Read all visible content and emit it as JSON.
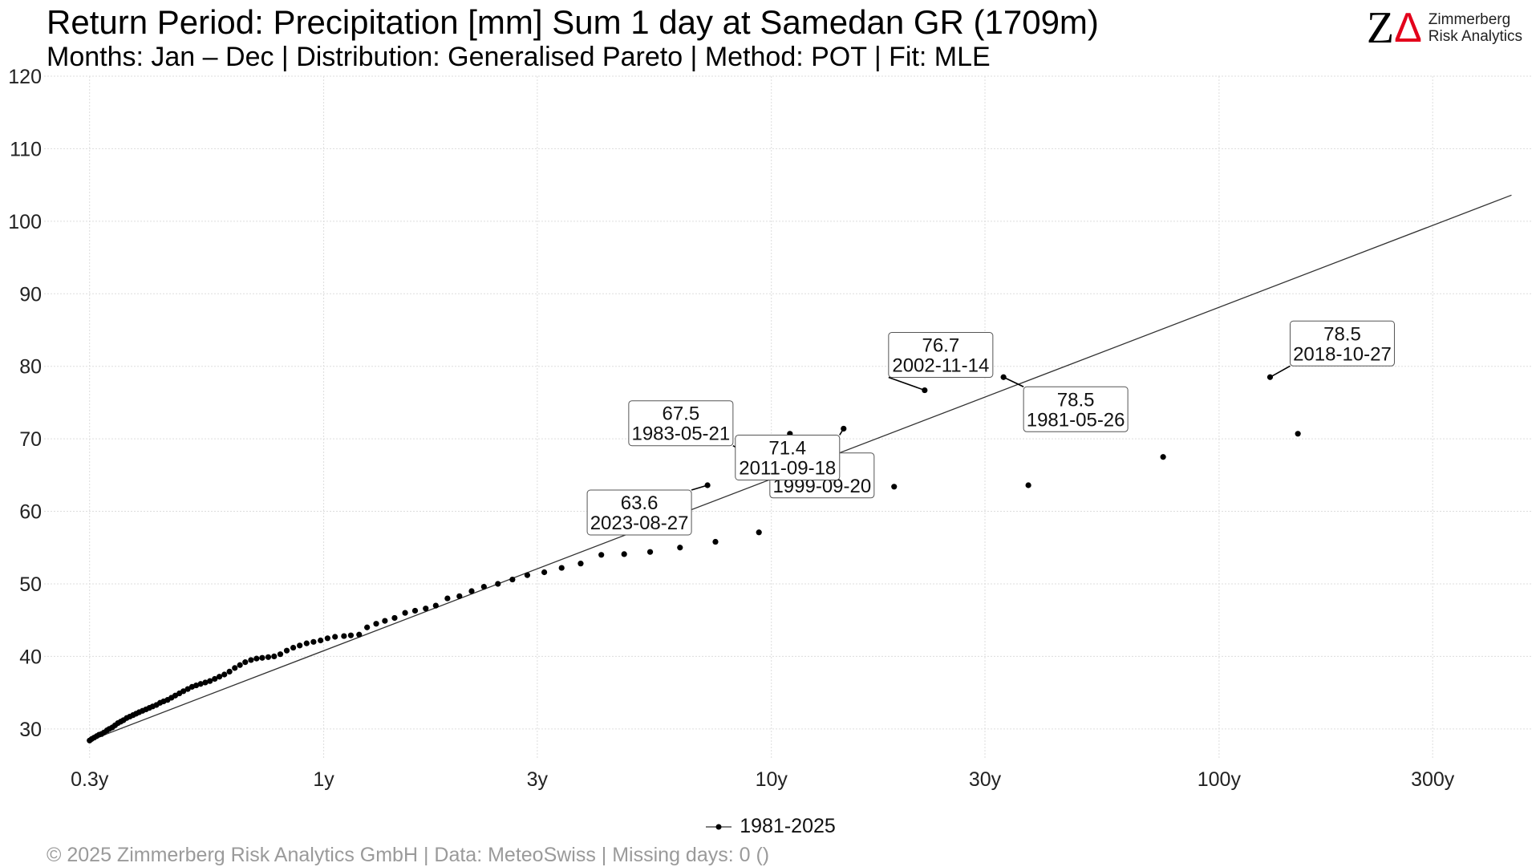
{
  "header": {
    "title": "Return Period: Precipitation [mm] Sum 1 day at Samedan  GR (1709m)",
    "subtitle": "Months: Jan – Dec | Distribution: Generalised Pareto | Method: POT | Fit: MLE"
  },
  "logo": {
    "mark_left": "Z",
    "mark_right": "Δ",
    "name_line1": "Zimmerberg",
    "name_line2": "Risk Analytics"
  },
  "legend": {
    "label": "1981-2025"
  },
  "footer": {
    "text": "©  2025 Zimmerberg Risk Analytics GmbH | Data: MeteoSwiss | Missing days: 0 ()"
  },
  "colors": {
    "accent": "#e3001b",
    "points": "#000000",
    "fit_line": "#333333",
    "grid": "#dddddd",
    "footer": "#9a9a9a"
  },
  "chart_data": {
    "type": "scatter",
    "xscale": "log",
    "xlim": [
      0.28,
      500
    ],
    "ylim": [
      26,
      120
    ],
    "x_ticks": [
      {
        "value": 0.3,
        "label": "0.3y"
      },
      {
        "value": 1,
        "label": "1y"
      },
      {
        "value": 3,
        "label": "3y"
      },
      {
        "value": 10,
        "label": "10y"
      },
      {
        "value": 30,
        "label": "30y"
      },
      {
        "value": 100,
        "label": "100y"
      },
      {
        "value": 300,
        "label": "300y"
      }
    ],
    "y_ticks": [
      30,
      40,
      50,
      60,
      70,
      80,
      90,
      100,
      110,
      120
    ],
    "grid": true,
    "legend_position": "bottom",
    "series": [
      {
        "name": "1981-2025",
        "points": [
          [
            0.3,
            28.4
          ],
          [
            0.303,
            28.6
          ],
          [
            0.307,
            28.8
          ],
          [
            0.311,
            29.0
          ],
          [
            0.315,
            29.2
          ],
          [
            0.319,
            29.3
          ],
          [
            0.323,
            29.5
          ],
          [
            0.328,
            29.8
          ],
          [
            0.332,
            30.0
          ],
          [
            0.337,
            30.2
          ],
          [
            0.342,
            30.5
          ],
          [
            0.347,
            30.8
          ],
          [
            0.352,
            31.0
          ],
          [
            0.357,
            31.2
          ],
          [
            0.363,
            31.5
          ],
          [
            0.369,
            31.7
          ],
          [
            0.375,
            31.9
          ],
          [
            0.381,
            32.1
          ],
          [
            0.387,
            32.3
          ],
          [
            0.394,
            32.5
          ],
          [
            0.401,
            32.7
          ],
          [
            0.408,
            32.9
          ],
          [
            0.415,
            33.1
          ],
          [
            0.423,
            33.3
          ],
          [
            0.431,
            33.6
          ],
          [
            0.439,
            33.8
          ],
          [
            0.448,
            34.0
          ],
          [
            0.457,
            34.3
          ],
          [
            0.466,
            34.6
          ],
          [
            0.476,
            34.9
          ],
          [
            0.486,
            35.2
          ],
          [
            0.497,
            35.5
          ],
          [
            0.508,
            35.8
          ],
          [
            0.519,
            36.0
          ],
          [
            0.531,
            36.2
          ],
          [
            0.544,
            36.4
          ],
          [
            0.557,
            36.6
          ],
          [
            0.571,
            36.9
          ],
          [
            0.585,
            37.2
          ],
          [
            0.6,
            37.5
          ],
          [
            0.616,
            37.9
          ],
          [
            0.633,
            38.4
          ],
          [
            0.65,
            38.8
          ],
          [
            0.668,
            39.2
          ],
          [
            0.688,
            39.5
          ],
          [
            0.708,
            39.7
          ],
          [
            0.729,
            39.8
          ],
          [
            0.752,
            39.9
          ],
          [
            0.775,
            40.0
          ],
          [
            0.8,
            40.3
          ],
          [
            0.827,
            40.8
          ],
          [
            0.855,
            41.2
          ],
          [
            0.884,
            41.5
          ],
          [
            0.916,
            41.8
          ],
          [
            0.949,
            42.0
          ],
          [
            0.984,
            42.2
          ],
          [
            1.02,
            42.5
          ],
          [
            1.06,
            42.7
          ],
          [
            1.11,
            42.8
          ],
          [
            1.15,
            42.9
          ],
          [
            1.2,
            43.0
          ],
          [
            1.25,
            44.0
          ],
          [
            1.31,
            44.5
          ],
          [
            1.37,
            44.9
          ],
          [
            1.44,
            45.3
          ],
          [
            1.52,
            46.0
          ],
          [
            1.6,
            46.3
          ],
          [
            1.69,
            46.6
          ],
          [
            1.78,
            47.0
          ],
          [
            1.89,
            48.0
          ],
          [
            2.01,
            48.3
          ],
          [
            2.14,
            49.0
          ],
          [
            2.28,
            49.6
          ],
          [
            2.45,
            50.0
          ],
          [
            2.64,
            50.6
          ],
          [
            2.85,
            51.2
          ],
          [
            3.11,
            51.6
          ],
          [
            3.4,
            52.2
          ],
          [
            3.75,
            52.8
          ],
          [
            4.17,
            54.0
          ],
          [
            4.69,
            54.1
          ],
          [
            5.36,
            54.4
          ],
          [
            6.25,
            55.0
          ],
          [
            7.5,
            55.8
          ],
          [
            9.38,
            57.1
          ],
          [
            12.5,
            63.1
          ],
          [
            18.8,
            63.4
          ],
          [
            37.5,
            63.6
          ],
          [
            75.0,
            67.5
          ],
          [
            150,
            70.7
          ]
        ],
        "labeled_points": [
          {
            "rp": 7.2,
            "value": 63.6,
            "date": "2023-08-27"
          },
          {
            "rp": 9.1,
            "value": 67.5,
            "date": "1983-05-21"
          },
          {
            "rp": 11.0,
            "value": 70.7,
            "date": "1999-09-20"
          },
          {
            "rp": 14.5,
            "value": 71.4,
            "date": "2011-09-18"
          },
          {
            "rp": 22.0,
            "value": 76.7,
            "date": "2002-11-14"
          },
          {
            "rp": 33.0,
            "value": 78.5,
            "date": "1981-05-26"
          },
          {
            "rp": 130,
            "value": 78.5,
            "date": "2018-10-27"
          }
        ]
      }
    ],
    "fit_line": [
      [
        0.3,
        28.4
      ],
      [
        450,
        103.6
      ]
    ]
  }
}
